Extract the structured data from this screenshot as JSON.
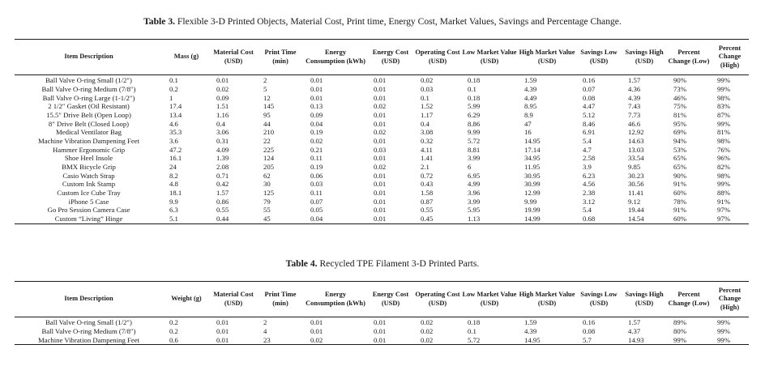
{
  "table3": {
    "caption_label": "Table 3.",
    "caption_text": "Flexible 3-D Printed Objects, Material Cost, Print time, Energy Cost, Market Values, Savings and Percentage Change.",
    "headers": [
      "Item Description",
      "Mass (g)",
      "Material Cost (USD)",
      "Print Time (min)",
      "Energy Consumption (kWh)",
      "Energy Cost (USD)",
      "Operating Cost (USD)",
      "Low Market Value (USD)",
      "High Market Value (USD)",
      "Savings Low (USD)",
      "Savings High (USD)",
      "Percent Change (Low)",
      "Percent Change (High)"
    ],
    "rows": [
      [
        "Ball Valve O-ring Small (1/2″)",
        "0.1",
        "0.01",
        "2",
        "0.01",
        "0.01",
        "0.02",
        "0.18",
        "1.59",
        "0.16",
        "1.57",
        "90%",
        "99%"
      ],
      [
        "Ball Valve O-ring Medium (7/8″)",
        "0.2",
        "0.02",
        "5",
        "0.01",
        "0.01",
        "0.03",
        "0.1",
        "4.39",
        "0.07",
        "4.36",
        "73%",
        "99%"
      ],
      [
        "Ball Valve O-ring Large (1-1/2″)",
        "1",
        "0.09",
        "12",
        "0.01",
        "0.01",
        "0.1",
        "0.18",
        "4.49",
        "0.08",
        "4.39",
        "46%",
        "98%"
      ],
      [
        "2 1/2″ Gasket (Oil Resistant)",
        "17.4",
        "1.51",
        "145",
        "0.13",
        "0.02",
        "1.52",
        "5.99",
        "8.95",
        "4.47",
        "7.43",
        "75%",
        "83%"
      ],
      [
        "15.5″ Drive Belt (Open Loop)",
        "13.4",
        "1.16",
        "95",
        "0.09",
        "0.01",
        "1.17",
        "6.29",
        "8.9",
        "5.12",
        "7.73",
        "81%",
        "87%"
      ],
      [
        "8″ Drive Belt (Closed Loop)",
        "4.6",
        "0.4",
        "44",
        "0.04",
        "0.01",
        "0.4",
        "8.86",
        "47",
        "8.46",
        "46.6",
        "95%",
        "99%"
      ],
      [
        "Medical Ventilator Bag",
        "35.3",
        "3.06",
        "210",
        "0.19",
        "0.02",
        "3.08",
        "9.99",
        "16",
        "6.91",
        "12.92",
        "69%",
        "81%"
      ],
      [
        "Machine Vibration Dampening Feet",
        "3.6",
        "0.31",
        "22",
        "0.02",
        "0.01",
        "0.32",
        "5.72",
        "14.95",
        "5.4",
        "14.63",
        "94%",
        "98%"
      ],
      [
        "Hammer Ergonomic Grip",
        "47.2",
        "4.09",
        "225",
        "0.21",
        "0.03",
        "4.11",
        "8.81",
        "17.14",
        "4.7",
        "13.03",
        "53%",
        "76%"
      ],
      [
        "Shoe Heel Insole",
        "16.1",
        "1.39",
        "124",
        "0.11",
        "0.01",
        "1.41",
        "3.99",
        "34.95",
        "2.58",
        "33.54",
        "65%",
        "96%"
      ],
      [
        "BMX Bicycle Grip",
        "24",
        "2.08",
        "205",
        "0.19",
        "0.02",
        "2.1",
        "6",
        "11.95",
        "3.9",
        "9.85",
        "65%",
        "82%"
      ],
      [
        "Casio Watch Strap",
        "8.2",
        "0.71",
        "62",
        "0.06",
        "0.01",
        "0.72",
        "6.95",
        "30.95",
        "6.23",
        "30.23",
        "90%",
        "98%"
      ],
      [
        "Custom Ink Stamp",
        "4.8",
        "0.42",
        "30",
        "0.03",
        "0.01",
        "0.43",
        "4.99",
        "30.99",
        "4.56",
        "30.56",
        "91%",
        "99%"
      ],
      [
        "Custom Ice Cube Tray",
        "18.1",
        "1.57",
        "125",
        "0.11",
        "0.01",
        "1.58",
        "3.96",
        "12.99",
        "2.38",
        "11.41",
        "60%",
        "88%"
      ],
      [
        "iPhone 5 Case",
        "9.9",
        "0.86",
        "79",
        "0.07",
        "0.01",
        "0.87",
        "3.99",
        "9.99",
        "3.12",
        "9.12",
        "78%",
        "91%"
      ],
      [
        "Go Pro Session Camera Case",
        "6.3",
        "0.55",
        "55",
        "0.05",
        "0.01",
        "0.55",
        "5.95",
        "19.99",
        "5.4",
        "19.44",
        "91%",
        "97%"
      ],
      [
        "Custom “Living” Hinge",
        "5.1",
        "0.44",
        "45",
        "0.04",
        "0.01",
        "0.45",
        "1.13",
        "14.99",
        "0.68",
        "14.54",
        "60%",
        "97%"
      ]
    ]
  },
  "table4": {
    "caption_label": "Table 4.",
    "caption_text": "Recycled TPE Filament 3-D Printed Parts.",
    "headers": [
      "Item Description",
      "Weight (g)",
      "Material Cost (USD)",
      "Print Time (min)",
      "Energy Consumption (kWh)",
      "Energy Cost (USD)",
      "Operating Cost (USD)",
      "Low Market Value (USD)",
      "High Market Value (USD)",
      "Savings Low (USD)",
      "Savings High (USD)",
      "Percent Change (Low)",
      "Percent Change (High)"
    ],
    "rows": [
      [
        "Ball Valve O-ring Small (1/2″)",
        "0.2",
        "0.01",
        "2",
        "0.01",
        "0.01",
        "0.02",
        "0.18",
        "1.59",
        "0.16",
        "1.57",
        "89%",
        "99%"
      ],
      [
        "Ball Valve O-ring Medium (7/8″)",
        "0.2",
        "0.01",
        "4",
        "0.01",
        "0.01",
        "0.02",
        "0.1",
        "4.39",
        "0.08",
        "4.37",
        "80%",
        "99%"
      ],
      [
        "Machine Vibration Dampening Feet",
        "0.6",
        "0.01",
        "23",
        "0.02",
        "0.01",
        "0.02",
        "5.72",
        "14.95",
        "5.7",
        "14.93",
        "99%",
        "99%"
      ]
    ]
  }
}
